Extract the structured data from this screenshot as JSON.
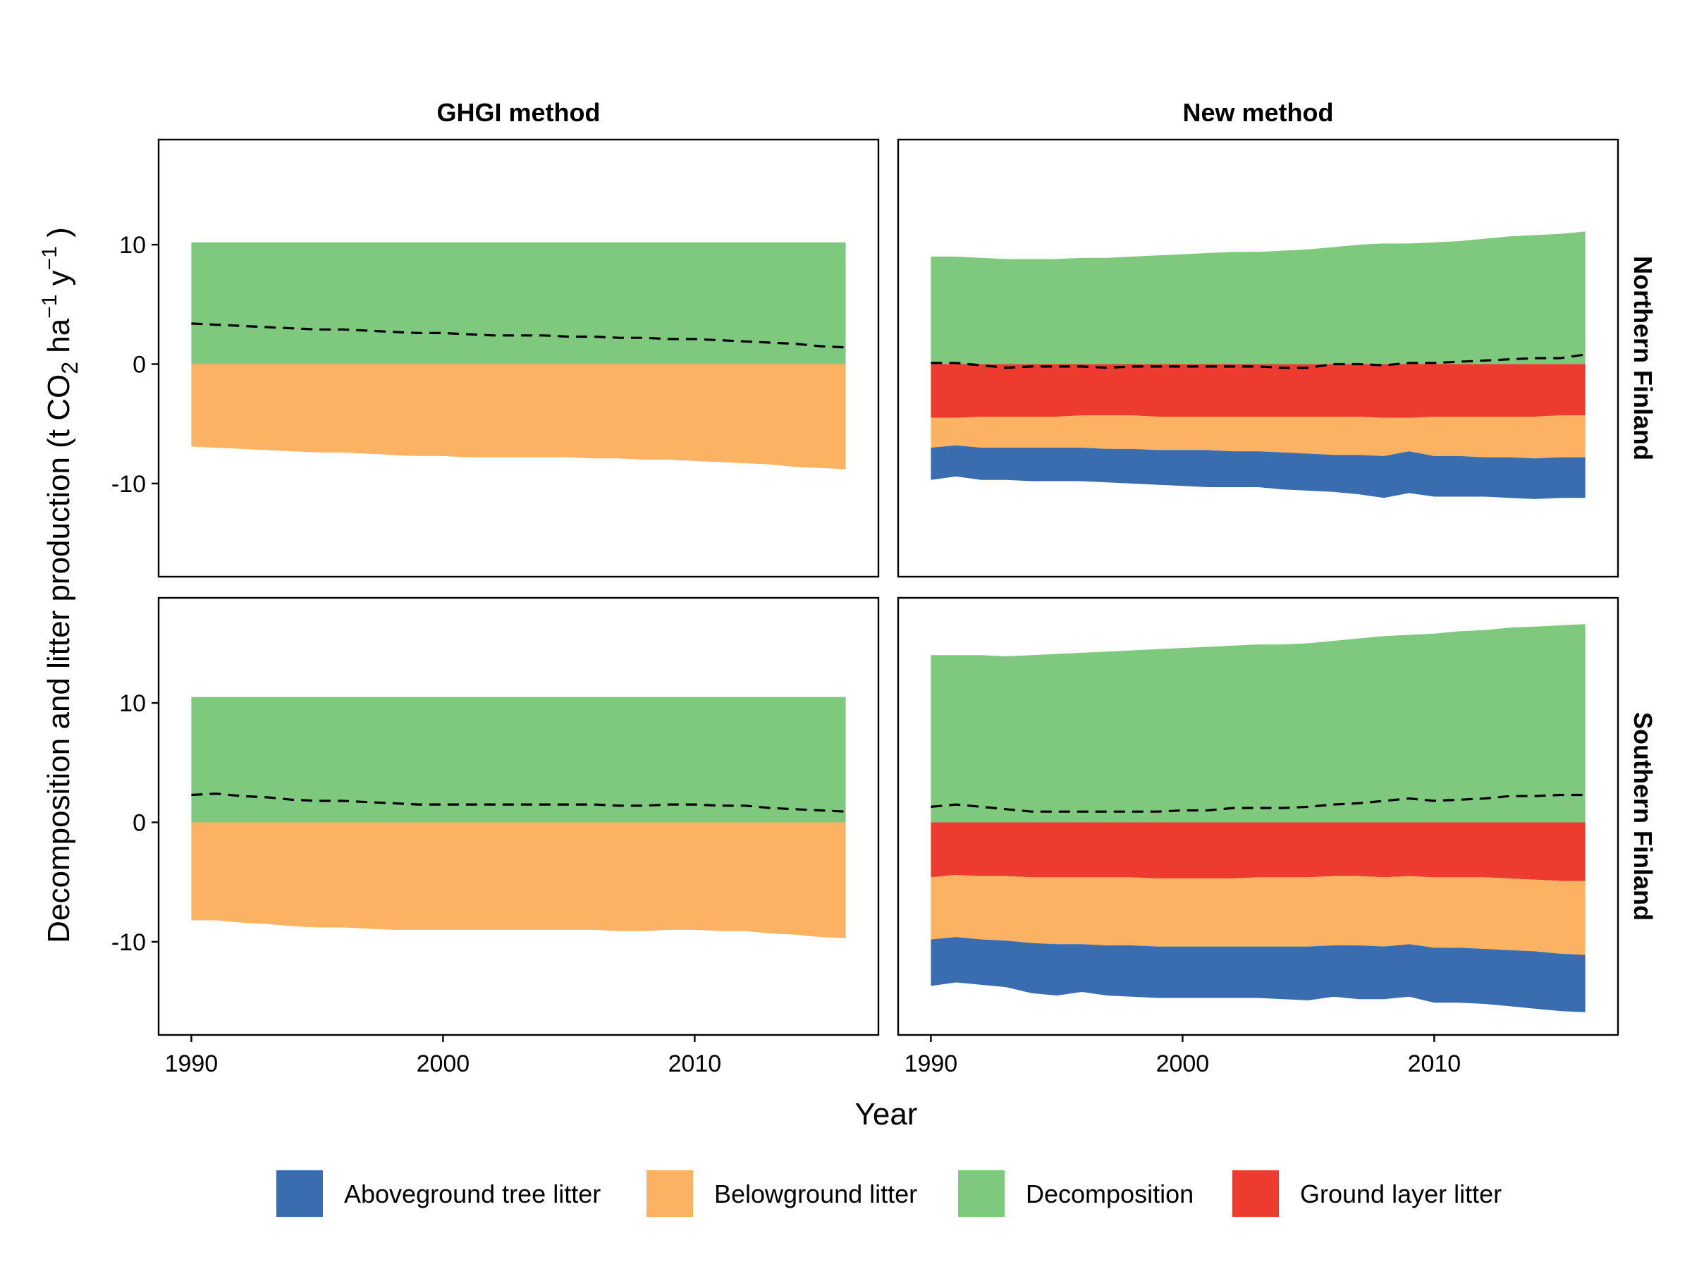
{
  "chart_data": {
    "type": "area",
    "layout": "facet-grid 2x2, stacked area with dashed net line",
    "x_label": "Year",
    "y_label_parts": {
      "main": "Decomposition and litter production (t  CO",
      "sub": "2",
      "ha": "  ha",
      "sup1": "−1",
      "y": "  y",
      "sup2": "−1",
      "close": " )"
    },
    "x_range": [
      1988.7,
      2017.3
    ],
    "y_range": [
      -17.8,
      18.8
    ],
    "x_ticks": [
      1990,
      2000,
      2010
    ],
    "y_ticks": [
      {
        "value": 10,
        "label": "10"
      },
      {
        "value": 0,
        "label": "0"
      },
      {
        "value": -10,
        "label": "-10"
      }
    ],
    "columns": [
      "GHGI method",
      "New method"
    ],
    "rows": [
      "Northern Finland",
      "Southern Finland"
    ],
    "colors": {
      "Aboveground tree litter": "#3a6cb0",
      "Belowground litter": "#fbb363",
      "Decomposition": "#7fc97f",
      "Ground layer litter": "#ee3b2f",
      "net": "#000000"
    },
    "legend": [
      "Aboveground tree litter",
      "Belowground litter",
      "Decomposition",
      "Ground layer litter"
    ],
    "legend_position": "bottom",
    "grid": false,
    "x": [
      1990,
      1991,
      1992,
      1993,
      1994,
      1995,
      1996,
      1997,
      1998,
      1999,
      2000,
      2001,
      2002,
      2003,
      2004,
      2005,
      2006,
      2007,
      2008,
      2009,
      2010,
      2011,
      2012,
      2013,
      2014,
      2015,
      2016
    ],
    "panels": [
      {
        "row": "Northern Finland",
        "column": "GHGI method",
        "series": [
          {
            "name": "Decomposition",
            "values": [
              10.2,
              10.2,
              10.2,
              10.2,
              10.2,
              10.2,
              10.2,
              10.2,
              10.2,
              10.2,
              10.2,
              10.2,
              10.2,
              10.2,
              10.2,
              10.2,
              10.2,
              10.2,
              10.2,
              10.2,
              10.2,
              10.2,
              10.2,
              10.2,
              10.2,
              10.2,
              10.2
            ]
          },
          {
            "name": "Belowground litter",
            "values": [
              -6.9,
              -7.0,
              -7.1,
              -7.2,
              -7.3,
              -7.4,
              -7.4,
              -7.5,
              -7.6,
              -7.7,
              -7.7,
              -7.8,
              -7.8,
              -7.8,
              -7.8,
              -7.8,
              -7.9,
              -7.9,
              -8.0,
              -8.0,
              -8.1,
              -8.2,
              -8.3,
              -8.4,
              -8.6,
              -8.7,
              -8.8
            ]
          }
        ],
        "net": [
          3.4,
          3.3,
          3.2,
          3.1,
          3.0,
          2.9,
          2.9,
          2.8,
          2.7,
          2.6,
          2.6,
          2.5,
          2.4,
          2.4,
          2.4,
          2.3,
          2.3,
          2.2,
          2.2,
          2.1,
          2.1,
          2.0,
          1.9,
          1.8,
          1.7,
          1.5,
          1.4
        ]
      },
      {
        "row": "Northern Finland",
        "column": "New method",
        "series": [
          {
            "name": "Decomposition",
            "values": [
              9.0,
              9.0,
              8.9,
              8.8,
              8.8,
              8.8,
              8.9,
              8.9,
              9.0,
              9.1,
              9.2,
              9.3,
              9.4,
              9.4,
              9.5,
              9.6,
              9.8,
              10.0,
              10.1,
              10.1,
              10.2,
              10.3,
              10.5,
              10.7,
              10.8,
              10.9,
              11.1
            ]
          },
          {
            "name": "Ground layer litter",
            "values": [
              -4.5,
              -4.5,
              -4.4,
              -4.4,
              -4.4,
              -4.4,
              -4.3,
              -4.3,
              -4.3,
              -4.4,
              -4.4,
              -4.4,
              -4.4,
              -4.4,
              -4.4,
              -4.4,
              -4.4,
              -4.4,
              -4.5,
              -4.5,
              -4.4,
              -4.4,
              -4.4,
              -4.4,
              -4.4,
              -4.3,
              -4.3
            ]
          },
          {
            "name": "Belowground litter",
            "values": [
              -2.5,
              -2.3,
              -2.6,
              -2.6,
              -2.6,
              -2.6,
              -2.7,
              -2.8,
              -2.8,
              -2.8,
              -2.8,
              -2.8,
              -2.9,
              -2.9,
              -3.0,
              -3.1,
              -3.2,
              -3.2,
              -3.2,
              -2.8,
              -3.3,
              -3.3,
              -3.4,
              -3.4,
              -3.5,
              -3.5,
              -3.5
            ]
          },
          {
            "name": "Aboveground tree litter",
            "values": [
              -2.7,
              -2.6,
              -2.7,
              -2.7,
              -2.8,
              -2.8,
              -2.8,
              -2.8,
              -2.9,
              -2.9,
              -3.0,
              -3.1,
              -3.0,
              -3.0,
              -3.1,
              -3.1,
              -3.1,
              -3.3,
              -3.5,
              -3.5,
              -3.4,
              -3.4,
              -3.3,
              -3.4,
              -3.4,
              -3.4,
              -3.4
            ]
          }
        ],
        "net": [
          0.1,
          0.1,
          -0.1,
          -0.3,
          -0.2,
          -0.2,
          -0.2,
          -0.3,
          -0.2,
          -0.2,
          -0.2,
          -0.2,
          -0.2,
          -0.2,
          -0.3,
          -0.3,
          0.0,
          0.0,
          -0.1,
          0.1,
          0.1,
          0.2,
          0.3,
          0.4,
          0.5,
          0.5,
          0.8
        ]
      },
      {
        "row": "Southern Finland",
        "column": "GHGI method",
        "series": [
          {
            "name": "Decomposition",
            "values": [
              10.5,
              10.5,
              10.5,
              10.5,
              10.5,
              10.5,
              10.5,
              10.5,
              10.5,
              10.5,
              10.5,
              10.5,
              10.5,
              10.5,
              10.5,
              10.5,
              10.5,
              10.5,
              10.5,
              10.5,
              10.5,
              10.5,
              10.5,
              10.5,
              10.5,
              10.5,
              10.5
            ]
          },
          {
            "name": "Belowground litter",
            "values": [
              -8.2,
              -8.2,
              -8.4,
              -8.5,
              -8.7,
              -8.8,
              -8.8,
              -8.9,
              -9.0,
              -9.0,
              -9.0,
              -9.0,
              -9.0,
              -9.0,
              -9.0,
              -9.0,
              -9.0,
              -9.1,
              -9.1,
              -9.0,
              -9.0,
              -9.1,
              -9.1,
              -9.3,
              -9.4,
              -9.6,
              -9.7
            ]
          }
        ],
        "net": [
          2.3,
          2.4,
          2.2,
          2.1,
          1.9,
          1.8,
          1.8,
          1.7,
          1.6,
          1.5,
          1.5,
          1.5,
          1.5,
          1.5,
          1.5,
          1.5,
          1.5,
          1.4,
          1.4,
          1.5,
          1.5,
          1.4,
          1.4,
          1.2,
          1.1,
          1.0,
          0.9
        ]
      },
      {
        "row": "Southern Finland",
        "column": "New method",
        "series": [
          {
            "name": "Decomposition",
            "values": [
              14.0,
              14.0,
              14.0,
              13.9,
              14.0,
              14.1,
              14.2,
              14.3,
              14.4,
              14.5,
              14.6,
              14.7,
              14.8,
              14.9,
              14.9,
              15.0,
              15.2,
              15.4,
              15.6,
              15.7,
              15.8,
              16.0,
              16.1,
              16.3,
              16.4,
              16.5,
              16.6
            ]
          },
          {
            "name": "Ground layer litter",
            "values": [
              -4.6,
              -4.4,
              -4.5,
              -4.5,
              -4.6,
              -4.6,
              -4.6,
              -4.6,
              -4.6,
              -4.7,
              -4.7,
              -4.7,
              -4.7,
              -4.6,
              -4.6,
              -4.6,
              -4.5,
              -4.5,
              -4.6,
              -4.5,
              -4.6,
              -4.6,
              -4.6,
              -4.7,
              -4.8,
              -4.9,
              -4.9
            ]
          },
          {
            "name": "Belowground litter",
            "values": [
              -5.2,
              -5.2,
              -5.3,
              -5.4,
              -5.5,
              -5.6,
              -5.6,
              -5.7,
              -5.7,
              -5.7,
              -5.7,
              -5.7,
              -5.7,
              -5.8,
              -5.8,
              -5.8,
              -5.8,
              -5.8,
              -5.8,
              -5.7,
              -5.9,
              -5.9,
              -6.0,
              -6.0,
              -6.0,
              -6.1,
              -6.2
            ]
          },
          {
            "name": "Aboveground tree litter",
            "values": [
              -3.9,
              -3.8,
              -3.8,
              -3.9,
              -4.2,
              -4.3,
              -4.0,
              -4.2,
              -4.3,
              -4.3,
              -4.3,
              -4.3,
              -4.3,
              -4.3,
              -4.4,
              -4.5,
              -4.3,
              -4.5,
              -4.4,
              -4.4,
              -4.6,
              -4.6,
              -4.6,
              -4.7,
              -4.8,
              -4.8,
              -4.8
            ]
          }
        ],
        "net": [
          1.3,
          1.5,
          1.3,
          1.1,
          0.9,
          0.9,
          0.9,
          0.9,
          0.9,
          0.9,
          1.0,
          1.0,
          1.2,
          1.2,
          1.2,
          1.3,
          1.5,
          1.6,
          1.8,
          2.0,
          1.8,
          1.9,
          2.0,
          2.2,
          2.2,
          2.3,
          2.3
        ]
      }
    ]
  }
}
